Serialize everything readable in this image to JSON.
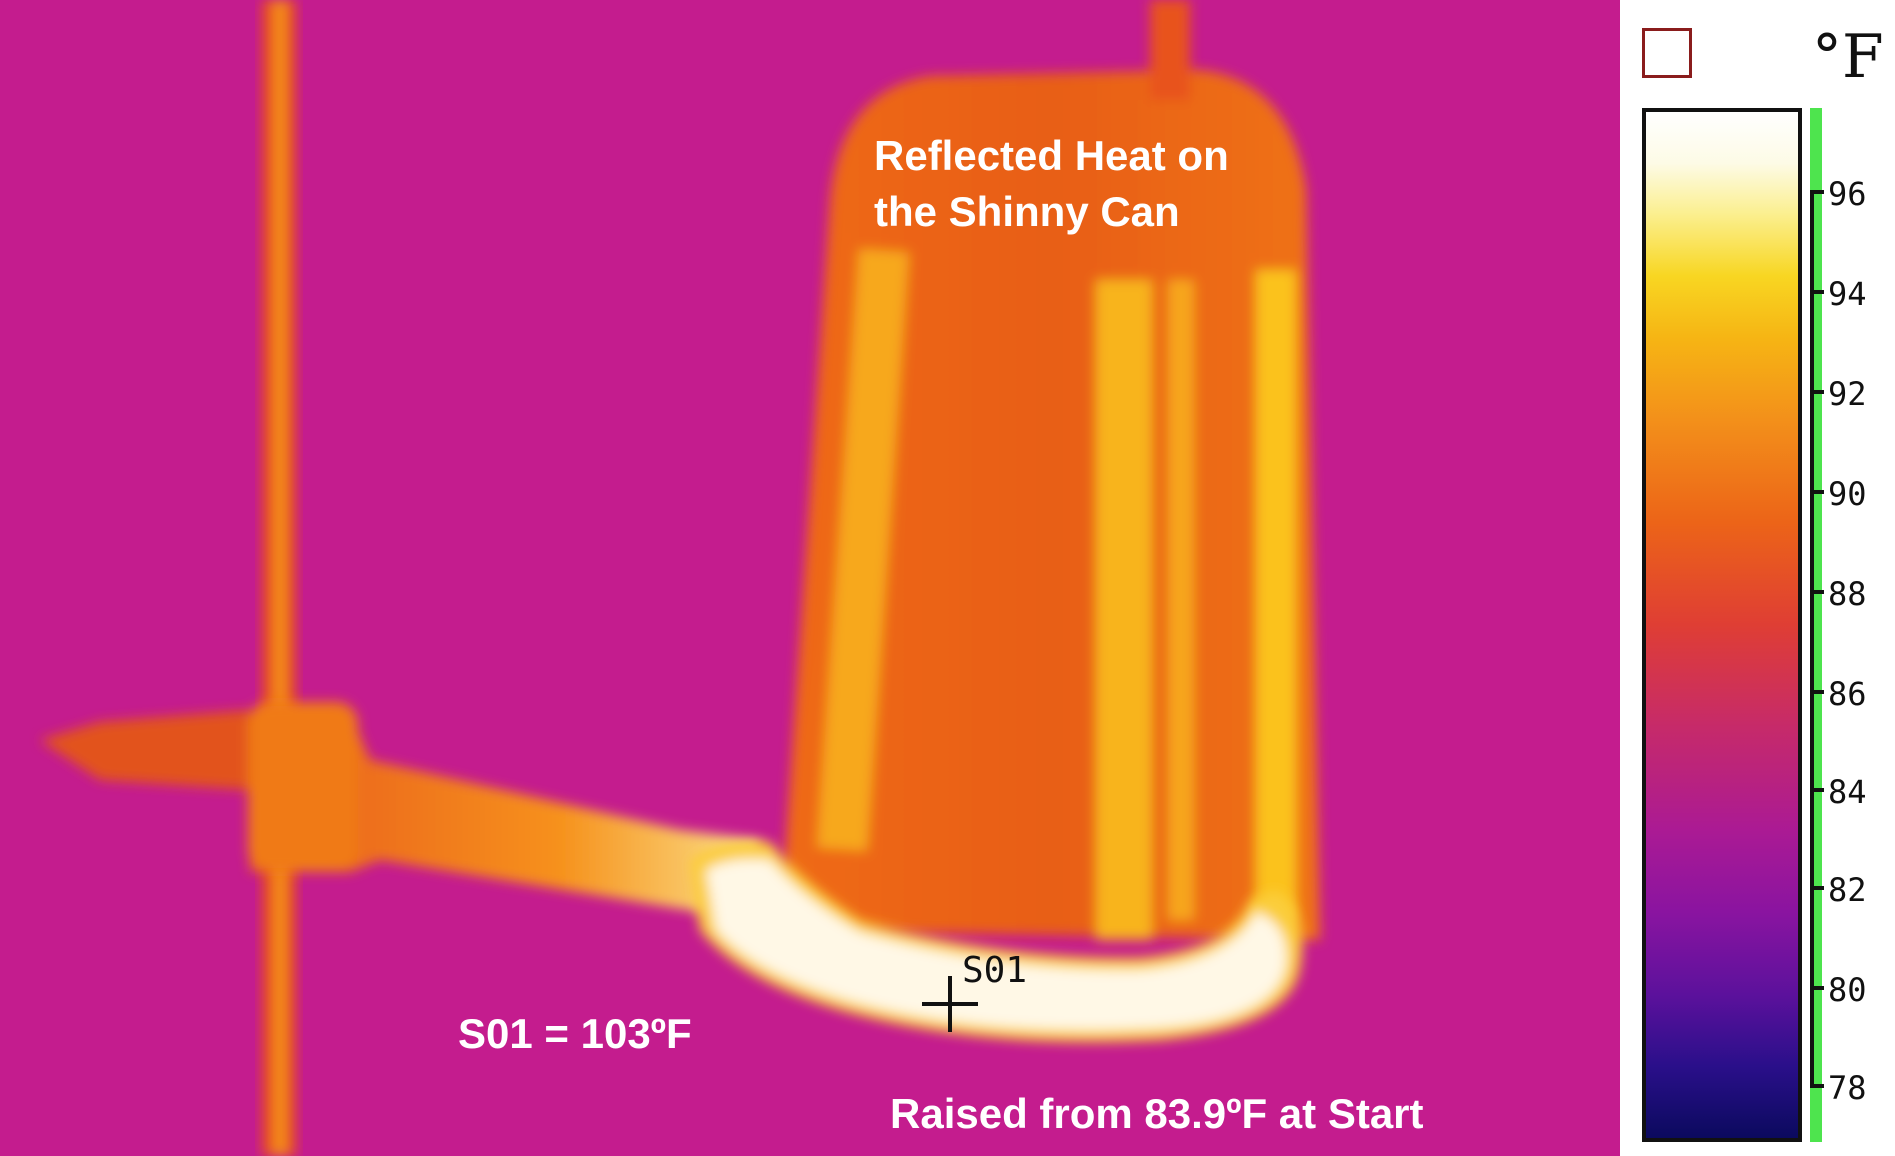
{
  "annotations": {
    "reflected_heat": "Reflected Heat on the Shinny Can",
    "s01_reading": "S01 = 103ºF",
    "raised_from": "Raised from 83.9ºF at Start",
    "spot_marker": "S01"
  },
  "scale": {
    "unit": "°F",
    "ticks": [
      "96",
      "94",
      "92",
      "90",
      "88",
      "86",
      "84",
      "82",
      "80",
      "78"
    ]
  },
  "colors": {
    "background": "#c81c8e",
    "hot_white": "#fff8e6",
    "can_orange": "#ef6a18",
    "highlight_yellow": "#fbc21c",
    "green_strip": "#4ee44e",
    "unit_box_border": "#8a1c1c"
  }
}
